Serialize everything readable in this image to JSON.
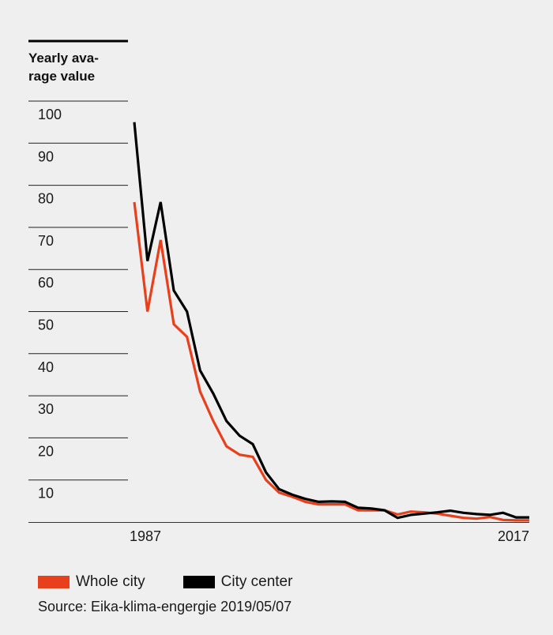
{
  "chart_data": {
    "type": "line",
    "ylabel_lines": [
      "Yearly ava-",
      "rage value"
    ],
    "y_ticks": [
      10,
      20,
      30,
      40,
      50,
      60,
      70,
      80,
      90,
      100
    ],
    "ylim": [
      0,
      100
    ],
    "x_tick_labels": [
      "1987",
      "2017"
    ],
    "x": [
      1987,
      1988,
      1989,
      1990,
      1991,
      1992,
      1993,
      1994,
      1995,
      1996,
      1997,
      1998,
      1999,
      2000,
      2001,
      2002,
      2003,
      2004,
      2005,
      2006,
      2007,
      2008,
      2009,
      2010,
      2011,
      2012,
      2013,
      2014,
      2015,
      2016,
      2017
    ],
    "xlim": [
      1987,
      2017
    ],
    "grid": false,
    "series": [
      {
        "name": "Whole city",
        "color": "#e8401c",
        "values": [
          76,
          50,
          67,
          47,
          44,
          31,
          24,
          18,
          16,
          15.5,
          10,
          7,
          6,
          4.8,
          4.2,
          4.2,
          4.2,
          2.8,
          2.8,
          2.8,
          1.8,
          2.5,
          2.3,
          2.0,
          1.5,
          1.0,
          0.8,
          1.2,
          0.5,
          0.4,
          0.4
        ]
      },
      {
        "name": "City center",
        "color": "#000000",
        "values": [
          95,
          62,
          76,
          55,
          50,
          36,
          30.5,
          24,
          20.5,
          18.5,
          11.8,
          7.8,
          6.5,
          5.5,
          4.8,
          4.9,
          4.8,
          3.4,
          3.2,
          2.8,
          1.0,
          1.7,
          2.0,
          2.3,
          2.7,
          2.2,
          1.9,
          1.7,
          2.2,
          1.1,
          1.1
        ]
      }
    ]
  },
  "legend": {
    "whole_city": "Whole city",
    "city_center": "City center"
  },
  "source": "Source: Eika-klima-engergie 2019/05/07"
}
